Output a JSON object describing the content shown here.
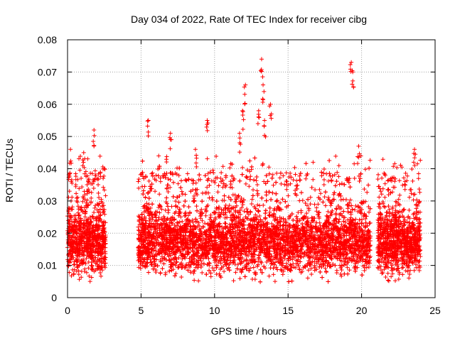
{
  "chart_data": {
    "type": "scatter",
    "title": "Day 034 of 2022, Rate Of TEC Index for receiver cibg",
    "xlabel": "GPS time / hours",
    "ylabel": "ROTI / TECUs",
    "xlim": [
      0,
      25
    ],
    "ylim": [
      0,
      0.08
    ],
    "xticks": [
      0,
      5,
      10,
      15,
      20,
      25
    ],
    "yticks": [
      0,
      0.01,
      0.02,
      0.03,
      0.04,
      0.05,
      0.06,
      0.07,
      0.08
    ],
    "xtick_labels": [
      "0",
      "5",
      "10",
      "15",
      "20",
      "25"
    ],
    "ytick_labels": [
      "0",
      "0.01",
      "0.02",
      "0.03",
      "0.04",
      "0.05",
      "0.06",
      "0.07",
      "0.08"
    ],
    "grid": true,
    "marker": "+",
    "marker_color": "#ff0000",
    "time_segments_hours": [
      [
        0.0,
        2.6
      ],
      [
        4.8,
        20.6
      ],
      [
        21.1,
        24.0
      ]
    ],
    "typical_range": [
      0.008,
      0.03
    ],
    "notable_points": [
      {
        "x": 0.2,
        "y": 0.046
      },
      {
        "x": 1.1,
        "y": 0.045
      },
      {
        "x": 1.8,
        "y": 0.052
      },
      {
        "x": 5.5,
        "y": 0.055
      },
      {
        "x": 6.2,
        "y": 0.044
      },
      {
        "x": 7.0,
        "y": 0.051
      },
      {
        "x": 8.7,
        "y": 0.046
      },
      {
        "x": 9.5,
        "y": 0.055
      },
      {
        "x": 11.7,
        "y": 0.051
      },
      {
        "x": 11.9,
        "y": 0.058
      },
      {
        "x": 12.1,
        "y": 0.066
      },
      {
        "x": 13.0,
        "y": 0.058
      },
      {
        "x": 13.2,
        "y": 0.074
      },
      {
        "x": 13.3,
        "y": 0.066
      },
      {
        "x": 13.4,
        "y": 0.055
      },
      {
        "x": 13.8,
        "y": 0.06
      },
      {
        "x": 19.3,
        "y": 0.073
      },
      {
        "x": 19.4,
        "y": 0.07
      },
      {
        "x": 19.8,
        "y": 0.047
      },
      {
        "x": 23.6,
        "y": 0.046
      }
    ]
  }
}
